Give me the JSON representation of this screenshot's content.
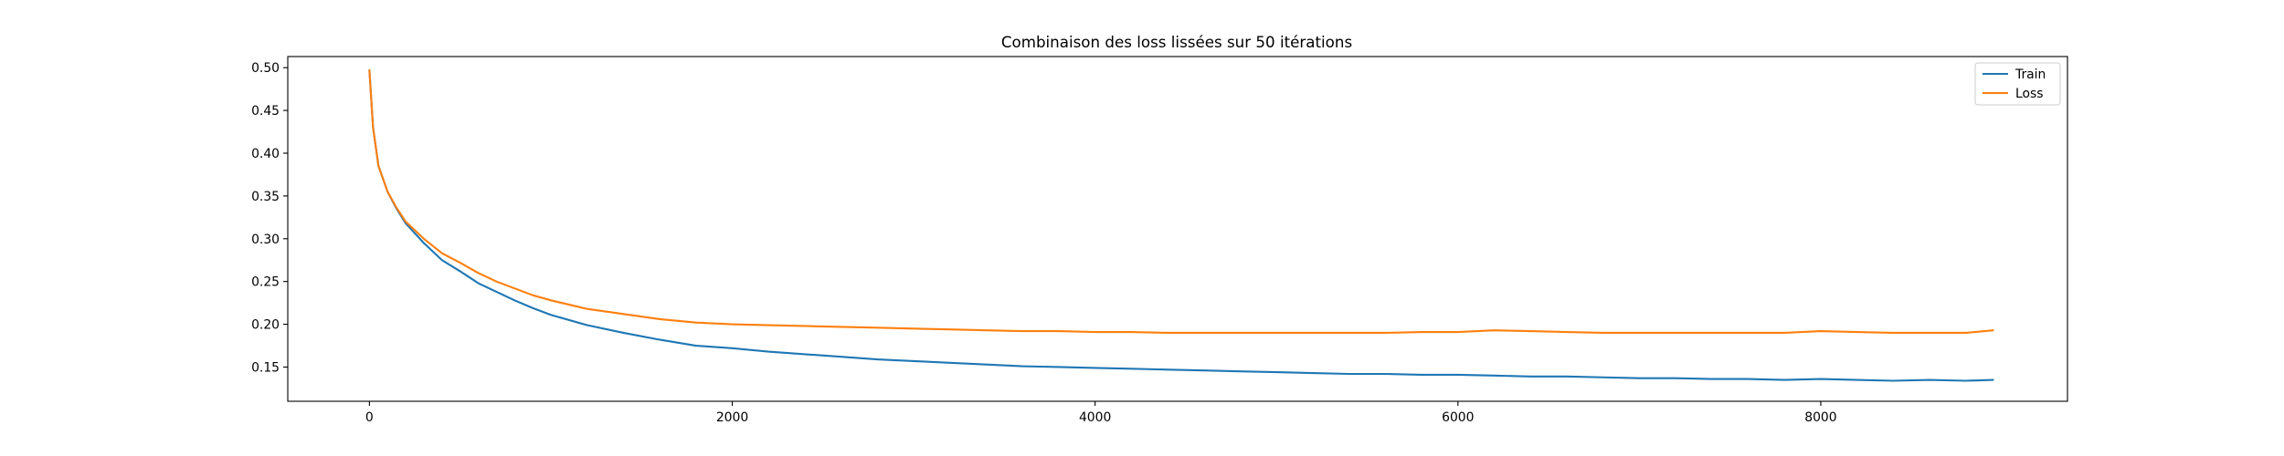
{
  "chart_data": {
    "type": "line",
    "title": "Combinaison des loss lissées sur 50 itérations",
    "xlabel": "",
    "ylabel": "",
    "xlim": [
      -450,
      9360
    ],
    "ylim": [
      0.11,
      0.513
    ],
    "grid": false,
    "legend_position": "top-right",
    "x_ticks": [
      0,
      2000,
      4000,
      6000,
      8000
    ],
    "x_tick_labels": [
      "0",
      "2000",
      "4000",
      "6000",
      "8000"
    ],
    "y_ticks": [
      0.15,
      0.2,
      0.25,
      0.3,
      0.35,
      0.4,
      0.45,
      0.5
    ],
    "y_tick_labels": [
      "0.15",
      "0.20",
      "0.25",
      "0.30",
      "0.35",
      "0.40",
      "0.45",
      "0.50"
    ],
    "series": [
      {
        "name": "Train",
        "color": "#1f77b4",
        "x": [
          0,
          20,
          50,
          100,
          150,
          200,
          300,
          400,
          500,
          600,
          700,
          800,
          900,
          1000,
          1200,
          1400,
          1600,
          1800,
          2000,
          2200,
          2400,
          2600,
          2800,
          3000,
          3200,
          3400,
          3600,
          3800,
          4000,
          4200,
          4400,
          4600,
          4800,
          5000,
          5200,
          5400,
          5600,
          5800,
          6000,
          6200,
          6400,
          6600,
          6800,
          7000,
          7200,
          7400,
          7600,
          7800,
          8000,
          8200,
          8400,
          8600,
          8800,
          8950
        ],
        "y": [
          0.497,
          0.43,
          0.385,
          0.355,
          0.335,
          0.318,
          0.295,
          0.275,
          0.262,
          0.248,
          0.238,
          0.228,
          0.219,
          0.211,
          0.199,
          0.19,
          0.182,
          0.175,
          0.172,
          0.168,
          0.165,
          0.162,
          0.159,
          0.157,
          0.155,
          0.153,
          0.151,
          0.15,
          0.149,
          0.148,
          0.147,
          0.146,
          0.145,
          0.144,
          0.143,
          0.142,
          0.142,
          0.141,
          0.141,
          0.14,
          0.139,
          0.139,
          0.138,
          0.137,
          0.137,
          0.136,
          0.136,
          0.135,
          0.136,
          0.135,
          0.134,
          0.135,
          0.134,
          0.135
        ]
      },
      {
        "name": "Loss",
        "color": "#ff7f0e",
        "x": [
          0,
          20,
          50,
          100,
          150,
          200,
          300,
          400,
          500,
          600,
          700,
          800,
          900,
          1000,
          1200,
          1400,
          1600,
          1800,
          2000,
          2200,
          2400,
          2600,
          2800,
          3000,
          3200,
          3400,
          3600,
          3800,
          4000,
          4200,
          4400,
          4600,
          4800,
          5000,
          5200,
          5400,
          5600,
          5800,
          6000,
          6200,
          6400,
          6600,
          6800,
          7000,
          7200,
          7400,
          7600,
          7800,
          8000,
          8200,
          8400,
          8600,
          8800,
          8950
        ],
        "y": [
          0.497,
          0.43,
          0.385,
          0.355,
          0.336,
          0.32,
          0.3,
          0.283,
          0.272,
          0.26,
          0.25,
          0.242,
          0.234,
          0.228,
          0.218,
          0.212,
          0.206,
          0.202,
          0.2,
          0.199,
          0.198,
          0.197,
          0.196,
          0.195,
          0.194,
          0.193,
          0.192,
          0.192,
          0.191,
          0.191,
          0.19,
          0.19,
          0.19,
          0.19,
          0.19,
          0.19,
          0.19,
          0.191,
          0.191,
          0.193,
          0.192,
          0.191,
          0.19,
          0.19,
          0.19,
          0.19,
          0.19,
          0.19,
          0.192,
          0.191,
          0.19,
          0.19,
          0.19,
          0.193
        ]
      }
    ]
  }
}
